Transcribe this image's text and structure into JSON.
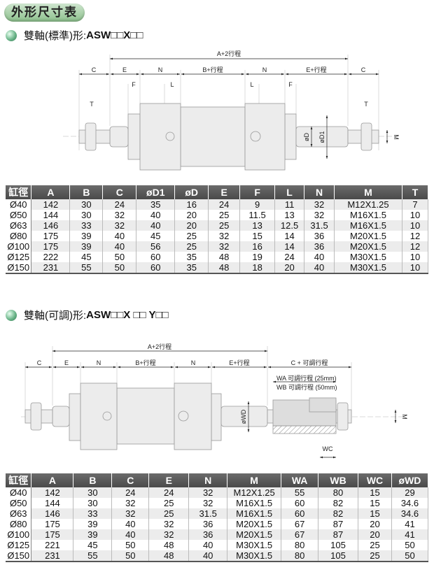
{
  "page_title": "外形尺寸表",
  "section1": {
    "title_prefix": "雙軸(標準)形:",
    "title_model": "ASW□□X□□",
    "diagram": {
      "A2": "A+2行程",
      "C": "C",
      "E": "E",
      "N": "N",
      "B": "B+行程",
      "E_stroke": "E+行程",
      "F": "F",
      "L": "L",
      "T": "T",
      "D": "øD",
      "D1": "øD1",
      "M": "M"
    },
    "table": {
      "headers": [
        "缸徑",
        "A",
        "B",
        "C",
        "øD1",
        "øD",
        "E",
        "F",
        "L",
        "N",
        "M",
        "T"
      ],
      "rows": [
        [
          "Ø40",
          "142",
          "30",
          "24",
          "35",
          "16",
          "24",
          "9",
          "11",
          "32",
          "M12X1.25",
          "7"
        ],
        [
          "Ø50",
          "144",
          "30",
          "32",
          "40",
          "20",
          "25",
          "11.5",
          "13",
          "32",
          "M16X1.5",
          "10"
        ],
        [
          "Ø63",
          "146",
          "33",
          "32",
          "40",
          "20",
          "25",
          "13",
          "12.5",
          "31.5",
          "M16X1.5",
          "10"
        ],
        [
          "Ø80",
          "175",
          "39",
          "40",
          "45",
          "25",
          "32",
          "15",
          "14",
          "36",
          "M20X1.5",
          "12"
        ],
        [
          "Ø100",
          "175",
          "39",
          "40",
          "56",
          "25",
          "32",
          "16",
          "14",
          "36",
          "M20X1.5",
          "12"
        ],
        [
          "Ø125",
          "222",
          "45",
          "50",
          "60",
          "35",
          "48",
          "19",
          "24",
          "40",
          "M30X1.5",
          "10"
        ],
        [
          "Ø150",
          "231",
          "55",
          "50",
          "60",
          "35",
          "48",
          "18",
          "20",
          "40",
          "M30X1.5",
          "10"
        ]
      ]
    }
  },
  "section2": {
    "title_prefix": "雙軸(可調)形:",
    "title_model": "ASW□□X □□ Y□□",
    "diagram": {
      "A2": "A+2行程",
      "C": "C",
      "E": "E",
      "N": "N",
      "B": "B+行程",
      "E_stroke": "E+行程",
      "C_adj": "C + 可調行程",
      "WA": "WA 可調行程 (25mm)",
      "WB": "WB 可調行程 (50mm)",
      "WD": "øWD",
      "WC": "WC",
      "M": "M"
    },
    "table": {
      "headers": [
        "缸徑",
        "A",
        "B",
        "C",
        "E",
        "N",
        "M",
        "WA",
        "WB",
        "WC",
        "øWD"
      ],
      "rows": [
        [
          "Ø40",
          "142",
          "30",
          "24",
          "24",
          "32",
          "M12X1.25",
          "55",
          "80",
          "15",
          "29"
        ],
        [
          "Ø50",
          "144",
          "30",
          "32",
          "25",
          "32",
          "M16X1.5",
          "60",
          "82",
          "15",
          "34.6"
        ],
        [
          "Ø63",
          "146",
          "33",
          "32",
          "25",
          "31.5",
          "M16X1.5",
          "60",
          "82",
          "15",
          "34.6"
        ],
        [
          "Ø80",
          "175",
          "39",
          "40",
          "32",
          "36",
          "M20X1.5",
          "67",
          "87",
          "20",
          "41"
        ],
        [
          "Ø100",
          "175",
          "39",
          "40",
          "32",
          "36",
          "M20X1.5",
          "67",
          "87",
          "20",
          "41"
        ],
        [
          "Ø125",
          "221",
          "45",
          "50",
          "48",
          "40",
          "M30X1.5",
          "80",
          "105",
          "25",
          "50"
        ],
        [
          "Ø150",
          "231",
          "55",
          "50",
          "48",
          "40",
          "M30X1.5",
          "80",
          "105",
          "25",
          "50"
        ]
      ]
    }
  }
}
